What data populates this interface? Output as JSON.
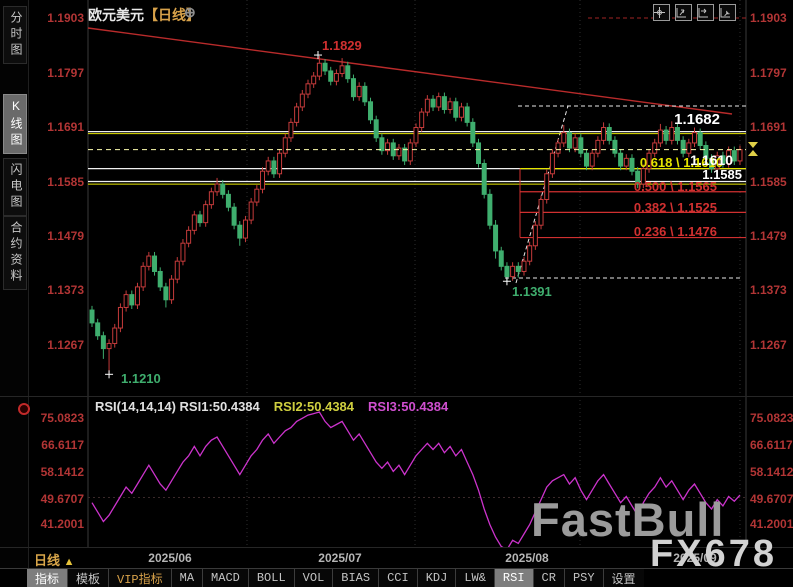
{
  "window": {
    "title": "欧元美元",
    "title_timeframe": "【日线】",
    "title_expand_icon": "⊕"
  },
  "sidebar": {
    "items": [
      {
        "label": "分时图",
        "selected": false
      },
      {
        "label": "K线图",
        "selected": true
      },
      {
        "label": "闪电图",
        "selected": false
      },
      {
        "label": "合约资料",
        "selected": false
      }
    ]
  },
  "top_icons": [
    {
      "name": "crosshair-icon"
    },
    {
      "name": "fit-vertical-icon"
    },
    {
      "name": "fit-horizontal-icon"
    },
    {
      "name": "fit-screen-icon"
    }
  ],
  "colors": {
    "up_candle": "#c53b3b",
    "down_candle": "#3fae6e",
    "axis_text": "#b23535",
    "fib_red": "#d03030",
    "fib_yellow": "#e5e500",
    "white_line": "#f0f0f0",
    "trend_red": "#b92b2b",
    "dashed_current": "#ffffb0",
    "rsi_line": "#cc33cc",
    "rsi2_text": "#cfcf3f",
    "rsi3_text": "#cf4fcf",
    "grid": "#2e2e2e",
    "accent_orange": "#d8a24a"
  },
  "main_chart": {
    "price_line_labels": [
      {
        "text": "1.1682"
      },
      {
        "text": "1.1610"
      },
      {
        "text": "1.1585"
      }
    ],
    "fib_labels": [
      {
        "text": "0.618 \\ 1.1610",
        "color": "yellow"
      },
      {
        "text": "0.500 \\ 1.1565",
        "color": "red"
      },
      {
        "text": "0.382 \\ 1.1525",
        "color": "red"
      },
      {
        "text": "0.236 \\ 1.1476",
        "color": "red"
      }
    ],
    "point_labels": [
      {
        "text": "1.1829",
        "color": "red"
      },
      {
        "text": "1.1210",
        "color": "green"
      },
      {
        "text": "1.1391",
        "color": "green"
      }
    ]
  },
  "rsi_panel": {
    "header_main": "RSI(14,14,14) RSI1:50.4384",
    "header_rsi2": "RSI2:50.4384",
    "header_rsi3": "RSI3:50.4384"
  },
  "time_axis": {
    "timeframe_label": "日线",
    "timeframe_arrow": "▲",
    "dates": [
      "2025/06",
      "2025/07",
      "2025/08",
      "2025/09"
    ]
  },
  "toolbar": {
    "tabs": [
      {
        "label": "指标",
        "selected": true
      },
      {
        "label": "模板"
      },
      {
        "label": "VIP指标",
        "accent": true
      },
      {
        "label": "MA"
      },
      {
        "label": "MACD"
      },
      {
        "label": "BOLL"
      },
      {
        "label": "VOL"
      },
      {
        "label": "BIAS"
      },
      {
        "label": "CCI"
      },
      {
        "label": "KDJ"
      },
      {
        "label": "LW&"
      },
      {
        "label": "RSI",
        "selected": true
      },
      {
        "label": "CR"
      },
      {
        "label": "PSY"
      },
      {
        "label": "设置"
      }
    ]
  },
  "watermark": {
    "brand": "FastBull",
    "sub": "FX678"
  },
  "chart_data": [
    {
      "type": "candlestick",
      "symbol": "欧元美元",
      "timeframe": "日线",
      "y_ticks": [
        "1.1903",
        "1.1797",
        "1.1691",
        "1.1585",
        "1.1479",
        "1.1373",
        "1.1267"
      ],
      "x_labels": [
        "2025/06",
        "2025/07",
        "2025/08",
        "2025/09"
      ],
      "ylim": [
        1.1166,
        1.1938
      ],
      "scale": {
        "p1": 1.1903,
        "y1": 18,
        "p2": 1.1267,
        "y2": 345
      },
      "key_levels": {
        "white_lines": [
          1.1682,
          1.161,
          1.1585
        ],
        "yellow_lines": [
          1.1678,
          1.158
        ],
        "current_price": 1.1647,
        "swing_high": 1.1829,
        "swing_lows": [
          1.121,
          1.1391
        ],
        "top_dashed_level": 1.1903
      },
      "fibonacci": [
        {
          "ratio": 0.618,
          "price": 1.161
        },
        {
          "ratio": 0.5,
          "price": 1.1565
        },
        {
          "ratio": 0.382,
          "price": 1.1525
        },
        {
          "ratio": 0.236,
          "price": 1.1476
        }
      ],
      "ohlc": [
        [
          1.1335,
          1.1343,
          1.1302,
          1.131
        ],
        [
          1.131,
          1.1318,
          1.1277,
          1.1285
        ],
        [
          1.1285,
          1.1293,
          1.124,
          1.126
        ],
        [
          1.126,
          1.1278,
          1.121,
          1.127
        ],
        [
          1.127,
          1.1308,
          1.1262,
          1.13
        ],
        [
          1.13,
          1.1348,
          1.1292,
          1.134
        ],
        [
          1.134,
          1.1373,
          1.1332,
          1.1365
        ],
        [
          1.1365,
          1.1373,
          1.1337,
          1.1345
        ],
        [
          1.1345,
          1.1388,
          1.1337,
          1.138
        ],
        [
          1.138,
          1.1428,
          1.1372,
          1.142
        ],
        [
          1.142,
          1.1448,
          1.1412,
          1.144
        ],
        [
          1.144,
          1.1448,
          1.1402,
          1.141
        ],
        [
          1.141,
          1.1418,
          1.1372,
          1.138
        ],
        [
          1.138,
          1.1388,
          1.134,
          1.1355
        ],
        [
          1.1355,
          1.1403,
          1.1347,
          1.1395
        ],
        [
          1.1395,
          1.1438,
          1.1387,
          1.143
        ],
        [
          1.143,
          1.1473,
          1.1422,
          1.1465
        ],
        [
          1.1465,
          1.1498,
          1.1457,
          1.149
        ],
        [
          1.149,
          1.1528,
          1.1482,
          1.152
        ],
        [
          1.152,
          1.1528,
          1.1497,
          1.1505
        ],
        [
          1.1505,
          1.1548,
          1.1497,
          1.154
        ],
        [
          1.154,
          1.1573,
          1.1532,
          1.1565
        ],
        [
          1.1565,
          1.1592,
          1.1557,
          1.158
        ],
        [
          1.158,
          1.1588,
          1.1552,
          1.156
        ],
        [
          1.156,
          1.1568,
          1.1527,
          1.1535
        ],
        [
          1.1535,
          1.1543,
          1.1492,
          1.15
        ],
        [
          1.15,
          1.1508,
          1.146,
          1.1475
        ],
        [
          1.1475,
          1.1518,
          1.1467,
          1.151
        ],
        [
          1.151,
          1.1553,
          1.1502,
          1.1545
        ],
        [
          1.1545,
          1.1578,
          1.1537,
          1.157
        ],
        [
          1.157,
          1.1613,
          1.1562,
          1.1605
        ],
        [
          1.1605,
          1.1633,
          1.1597,
          1.1625
        ],
        [
          1.1625,
          1.1633,
          1.1592,
          1.16
        ],
        [
          1.16,
          1.1648,
          1.1592,
          1.164
        ],
        [
          1.164,
          1.1678,
          1.1632,
          1.167
        ],
        [
          1.167,
          1.1708,
          1.1662,
          1.17
        ],
        [
          1.17,
          1.1738,
          1.1692,
          1.173
        ],
        [
          1.173,
          1.1763,
          1.1722,
          1.1755
        ],
        [
          1.1755,
          1.1783,
          1.1747,
          1.1775
        ],
        [
          1.1775,
          1.1798,
          1.1767,
          1.179
        ],
        [
          1.179,
          1.1829,
          1.1782,
          1.1815
        ],
        [
          1.1815,
          1.1823,
          1.1792,
          1.18
        ],
        [
          1.18,
          1.1808,
          1.1772,
          1.178
        ],
        [
          1.178,
          1.1803,
          1.1772,
          1.1795
        ],
        [
          1.1795,
          1.1825,
          1.1788,
          1.181
        ],
        [
          1.181,
          1.1818,
          1.1777,
          1.1785
        ],
        [
          1.1785,
          1.1793,
          1.1742,
          1.175
        ],
        [
          1.175,
          1.1778,
          1.1742,
          1.177
        ],
        [
          1.177,
          1.1778,
          1.1732,
          1.174
        ],
        [
          1.174,
          1.1748,
          1.1697,
          1.1705
        ],
        [
          1.1705,
          1.1713,
          1.1662,
          1.167
        ],
        [
          1.167,
          1.1678,
          1.1637,
          1.1645
        ],
        [
          1.1645,
          1.1668,
          1.1637,
          1.166
        ],
        [
          1.166,
          1.1668,
          1.1627,
          1.1635
        ],
        [
          1.1635,
          1.1658,
          1.1627,
          1.165
        ],
        [
          1.165,
          1.1658,
          1.1617,
          1.1625
        ],
        [
          1.1625,
          1.1668,
          1.1617,
          1.166
        ],
        [
          1.166,
          1.1698,
          1.1652,
          1.169
        ],
        [
          1.169,
          1.1728,
          1.1682,
          1.172
        ],
        [
          1.172,
          1.1753,
          1.1712,
          1.1745
        ],
        [
          1.1745,
          1.1753,
          1.1722,
          1.173
        ],
        [
          1.173,
          1.1758,
          1.1722,
          1.175
        ],
        [
          1.175,
          1.1758,
          1.1717,
          1.1725
        ],
        [
          1.1725,
          1.1748,
          1.1717,
          1.174
        ],
        [
          1.174,
          1.1748,
          1.1702,
          1.171
        ],
        [
          1.171,
          1.1738,
          1.1702,
          1.173
        ],
        [
          1.173,
          1.1738,
          1.1692,
          1.17
        ],
        [
          1.17,
          1.1708,
          1.1652,
          1.166
        ],
        [
          1.166,
          1.1668,
          1.1612,
          1.162
        ],
        [
          1.162,
          1.1628,
          1.1552,
          1.156
        ],
        [
          1.156,
          1.157,
          1.1492,
          1.15
        ],
        [
          1.15,
          1.151,
          1.1435,
          1.145
        ],
        [
          1.145,
          1.1458,
          1.1412,
          1.142
        ],
        [
          1.142,
          1.1428,
          1.1391,
          1.14
        ],
        [
          1.14,
          1.1428,
          1.1392,
          1.142
        ],
        [
          1.142,
          1.1428,
          1.1398,
          1.141
        ],
        [
          1.141,
          1.1438,
          1.1402,
          1.143
        ],
        [
          1.143,
          1.1468,
          1.1422,
          1.146
        ],
        [
          1.146,
          1.1508,
          1.1452,
          1.15
        ],
        [
          1.15,
          1.1558,
          1.1492,
          1.155
        ],
        [
          1.155,
          1.1608,
          1.1542,
          1.16
        ],
        [
          1.16,
          1.1648,
          1.1592,
          1.164
        ],
        [
          1.164,
          1.1668,
          1.1632,
          1.166
        ],
        [
          1.166,
          1.1695,
          1.1652,
          1.168
        ],
        [
          1.168,
          1.1688,
          1.1642,
          1.165
        ],
        [
          1.165,
          1.1678,
          1.1642,
          1.167
        ],
        [
          1.167,
          1.1678,
          1.1632,
          1.164
        ],
        [
          1.164,
          1.1648,
          1.1607,
          1.1615
        ],
        [
          1.1615,
          1.1648,
          1.1607,
          1.164
        ],
        [
          1.164,
          1.1673,
          1.1632,
          1.1665
        ],
        [
          1.1665,
          1.17,
          1.1657,
          1.169
        ],
        [
          1.169,
          1.1698,
          1.1657,
          1.1665
        ],
        [
          1.1665,
          1.1673,
          1.1632,
          1.164
        ],
        [
          1.164,
          1.1648,
          1.1607,
          1.1615
        ],
        [
          1.1615,
          1.1638,
          1.1607,
          1.163
        ],
        [
          1.163,
          1.1638,
          1.1597,
          1.1605
        ],
        [
          1.1605,
          1.1613,
          1.1572,
          1.158
        ],
        [
          1.158,
          1.1618,
          1.1572,
          1.161
        ],
        [
          1.161,
          1.1648,
          1.1602,
          1.164
        ],
        [
          1.164,
          1.1668,
          1.1632,
          1.166
        ],
        [
          1.166,
          1.1697,
          1.1652,
          1.1685
        ],
        [
          1.1685,
          1.1693,
          1.1657,
          1.1665
        ],
        [
          1.1665,
          1.1702,
          1.1657,
          1.169
        ],
        [
          1.169,
          1.1698,
          1.1657,
          1.1665
        ],
        [
          1.1665,
          1.1673,
          1.1632,
          1.164
        ],
        [
          1.164,
          1.1668,
          1.1632,
          1.166
        ],
        [
          1.166,
          1.169,
          1.1652,
          1.168
        ],
        [
          1.168,
          1.1688,
          1.1647,
          1.1655
        ],
        [
          1.1655,
          1.1663,
          1.1622,
          1.163
        ],
        [
          1.163,
          1.1638,
          1.1602,
          1.161
        ],
        [
          1.161,
          1.1643,
          1.1602,
          1.1635
        ],
        [
          1.1635,
          1.1643,
          1.1612,
          1.162
        ],
        [
          1.162,
          1.1653,
          1.1612,
          1.1645
        ],
        [
          1.1645,
          1.1653,
          1.1617,
          1.1625
        ],
        [
          1.1625,
          1.1655,
          1.1617,
          1.1647
        ]
      ]
    },
    {
      "type": "line",
      "name": "RSI",
      "params": "RSI(14,14,14)",
      "rsi1": 50.4384,
      "rsi2": 50.4384,
      "rsi3": 50.4384,
      "y_ticks": [
        "75.0823",
        "66.6117",
        "58.1412",
        "49.6707",
        "41.2001"
      ],
      "scale": {
        "v1": 75.0823,
        "y1": 418,
        "v2": 41.2001,
        "y2": 524
      },
      "values": [
        48,
        45,
        42,
        44,
        47,
        50,
        53,
        51,
        54,
        57,
        60,
        57,
        54,
        52,
        55,
        58,
        61,
        63,
        66,
        63,
        66,
        68,
        69,
        66,
        63,
        60,
        57,
        60,
        63,
        65,
        68,
        70,
        67,
        69,
        71,
        72,
        74,
        75,
        76,
        76.5,
        77,
        74,
        72,
        73,
        74,
        71,
        68,
        70,
        67,
        64,
        61,
        59,
        61,
        58,
        60,
        57,
        60,
        63,
        65,
        67,
        65,
        67,
        64,
        66,
        63,
        65,
        61,
        57,
        52,
        46,
        41,
        37,
        34,
        33,
        36,
        35,
        38,
        41,
        45,
        49,
        53,
        55,
        56,
        57,
        54,
        56,
        52,
        49,
        52,
        55,
        57,
        54,
        51,
        48,
        50,
        47,
        44,
        48,
        51,
        53,
        56,
        53,
        55,
        52,
        49,
        52,
        54,
        51,
        48,
        46,
        49,
        47,
        50,
        48.5,
        50.4384
      ]
    }
  ]
}
